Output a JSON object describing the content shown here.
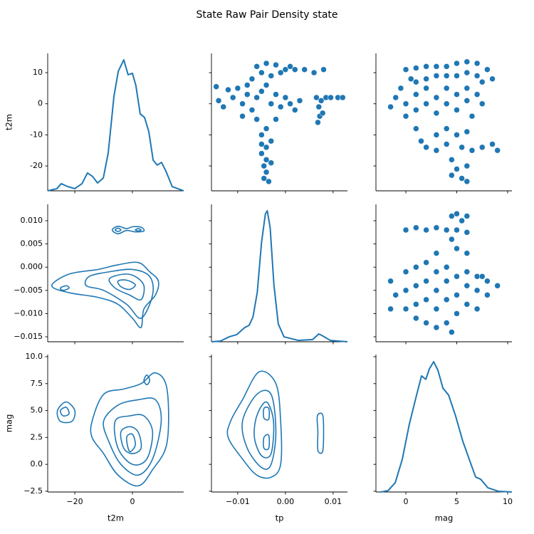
{
  "title": "State Raw Pair Density state",
  "chart_data": [
    {
      "type": "kde",
      "color": "#1f77b4",
      "ylabel": "t2m",
      "ylim": [
        -28,
        16.2
      ],
      "yticks": [
        -20,
        -10,
        0,
        10
      ],
      "y2lim": [
        0,
        1
      ],
      "x": [
        -29.4,
        -26.2,
        -24.7,
        -22.5,
        -20,
        -17.5,
        -15.6,
        -13.8,
        -12.1,
        -10.1,
        -8.4,
        -6.4,
        -4.9,
        -3,
        -1.5,
        0,
        1.2,
        2.7,
        4.2,
        5.7,
        7.2,
        8.6,
        10.1,
        11.6,
        13.8,
        17.8
      ],
      "values": [
        0,
        0.016,
        0.052,
        0.031,
        0.016,
        0.052,
        0.13,
        0.104,
        0.057,
        0.093,
        0.275,
        0.689,
        0.87,
        0.953,
        0.845,
        0.855,
        0.767,
        0.56,
        0.534,
        0.43,
        0.223,
        0.187,
        0.207,
        0.145,
        0.031,
        0
      ]
    },
    {
      "type": "scatter",
      "color": "#1f77b4",
      "x": [
        -0.006,
        -0.004,
        -0.002,
        -0.005,
        -0.003,
        -0.001,
        0,
        -0.007,
        0.001,
        0.002,
        0.004,
        0.006,
        0.008,
        -0.0145,
        -0.014,
        -0.013,
        -0.012,
        -0.011,
        -0.01,
        -0.009,
        -0.008,
        -0.008,
        -0.007,
        -0.006,
        -0.005,
        -0.004,
        -0.003,
        -0.002,
        -0.001,
        0,
        0.001,
        0.002,
        0.003,
        -0.009,
        -0.006,
        -0.002,
        0.0065,
        0.0075,
        0.0085,
        0.007,
        0.0072,
        0.0068,
        0.0078,
        0.0095,
        0.011,
        0.012,
        -0.004,
        -0.005,
        -0.003,
        -0.004,
        -0.005,
        -0.004,
        -0.0045,
        -0.004,
        -0.0045,
        -0.0035,
        -0.003,
        -0.005
      ],
      "values": [
        12,
        13,
        12.5,
        10,
        9,
        10,
        11,
        8,
        12,
        11,
        11,
        10,
        11,
        5.5,
        1,
        -1,
        4.5,
        2,
        5,
        0,
        3,
        6,
        -2,
        2,
        4,
        6,
        0,
        3,
        -1,
        2,
        0,
        -2,
        1,
        -4,
        -5,
        -5,
        2,
        1,
        2,
        -1,
        -4,
        -6,
        -3,
        2,
        2,
        2,
        -8,
        -10,
        -12,
        -14,
        -16,
        -18,
        -20,
        -22,
        -24,
        -25,
        -19,
        -13
      ]
    },
    {
      "type": "scatter",
      "color": "#1f77b4",
      "x": [
        0,
        1,
        2,
        3,
        4,
        5,
        6,
        7,
        8,
        8.5,
        1,
        2,
        3,
        4,
        5,
        6,
        7,
        7.5,
        -1,
        -0.5,
        0,
        0,
        1,
        1,
        2,
        2,
        3,
        3,
        4,
        4,
        5,
        5,
        6,
        6,
        7,
        7.5,
        -1.5,
        0.5,
        6.5,
        1,
        1.5,
        2,
        3,
        3,
        4,
        4,
        5,
        5.5,
        6,
        6.5,
        7.5,
        8.5,
        9,
        4.5,
        5,
        5.5,
        6,
        4.5,
        6
      ],
      "values": [
        11,
        11.5,
        12,
        12,
        12,
        13,
        13.5,
        13,
        11,
        8,
        7,
        8,
        9,
        9,
        9,
        10,
        9,
        7,
        2,
        5,
        0,
        -4,
        3,
        -2,
        0,
        5,
        -3,
        2,
        0,
        5,
        -2,
        3,
        1,
        5,
        3,
        0,
        -1,
        8,
        -4,
        -8,
        -12,
        -14,
        -10,
        -15,
        -8,
        -13,
        -10,
        -14,
        -9,
        -15,
        -14,
        -13,
        -15,
        -18,
        -21,
        -24,
        -25,
        -23,
        -20
      ]
    },
    {
      "type": "contour",
      "color": "#1f77b4",
      "ylim": [
        -0.01607,
        0.01353
      ],
      "yticks": [
        {
          "value": -0.015,
          "label": "−0.015"
        },
        {
          "value": -0.01,
          "label": "−0.010"
        },
        {
          "value": -0.005,
          "label": "−0.005"
        },
        {
          "value": 0,
          "label": "0.000"
        },
        {
          "value": 0.005,
          "label": "0.005"
        },
        {
          "value": 0.01,
          "label": "0.010"
        }
      ],
      "lines": [
        {
          "x": [
            -7,
            -5,
            -2,
            0,
            3,
            4,
            1,
            -2,
            -5
          ],
          "values": [
            0.008,
            0.0088,
            0.0083,
            0.0087,
            0.0086,
            0.0078,
            0.0076,
            0.0079,
            0.0072
          ]
        },
        {
          "x": [
            -6,
            -5,
            -4,
            -5
          ],
          "values": [
            0.008,
            0.0084,
            0.008,
            0.0077
          ]
        },
        {
          "x": [
            1,
            2,
            3,
            2
          ],
          "values": [
            0.008,
            0.0083,
            0.008,
            0.0078
          ]
        },
        {
          "x": [
            -28,
            -22,
            -12,
            -5,
            2,
            6,
            9,
            8,
            4,
            3,
            0,
            -5,
            -12,
            -22
          ],
          "values": [
            -0.004,
            -0.0015,
            -0.0005,
            0.0005,
            0.001,
            -0.001,
            -0.003,
            -0.006,
            -0.009,
            -0.013,
            -0.011,
            -0.008,
            -0.0065,
            -0.0055
          ]
        },
        {
          "x": [
            -15,
            -8,
            0,
            6,
            7,
            3,
            -2,
            -10,
            -16
          ],
          "values": [
            -0.002,
            -0.001,
            -0.0005,
            -0.002,
            -0.006,
            -0.011,
            -0.008,
            -0.005,
            -0.004
          ]
        },
        {
          "x": [
            -8,
            -3,
            1,
            4,
            3,
            -1,
            -6
          ],
          "values": [
            -0.0025,
            -0.0015,
            -0.002,
            -0.004,
            -0.007,
            -0.006,
            -0.0045
          ]
        },
        {
          "x": [
            -5,
            -2,
            1,
            -1,
            -4
          ],
          "values": [
            -0.003,
            -0.0028,
            -0.0038,
            -0.0048,
            -0.0042
          ]
        },
        {
          "x": [
            -25,
            -23,
            -22,
            -24
          ],
          "values": [
            -0.0045,
            -0.004,
            -0.0045,
            -0.005
          ]
        }
      ]
    },
    {
      "type": "kde",
      "color": "#1f77b4",
      "y2lim": [
        0,
        1
      ],
      "x": [
        -0.0155,
        -0.0136,
        -0.0118,
        -0.0102,
        -0.0085,
        -0.0076,
        -0.0068,
        -0.0059,
        -0.005,
        -0.0042,
        -0.0038,
        -0.0032,
        -0.0024,
        -0.0015,
        -0.0003,
        0.0027,
        0.0057,
        0.007,
        0.0079,
        0.0094,
        0.013
      ],
      "values": [
        0,
        0.005,
        0.036,
        0.052,
        0.104,
        0.12,
        0.18,
        0.36,
        0.725,
        0.93,
        0.953,
        0.83,
        0.41,
        0.13,
        0.036,
        0.01,
        0.016,
        0.057,
        0.041,
        0.01,
        0
      ]
    },
    {
      "type": "scatter",
      "color": "#1f77b4",
      "x": [
        0,
        1,
        2,
        3,
        4,
        5,
        6,
        4.5,
        5,
        5.5,
        6,
        4.5,
        5,
        3,
        6,
        -1.5,
        -1,
        -1.5,
        0,
        0,
        0,
        1,
        1,
        1,
        1,
        2,
        2,
        2,
        2,
        3,
        3,
        3,
        3,
        4,
        4,
        4,
        4,
        4.5,
        5,
        5,
        5,
        6,
        6,
        6,
        7,
        7,
        7,
        8,
        8,
        9,
        7.5
      ],
      "values": [
        0.008,
        0.0085,
        0.008,
        0.0085,
        0.008,
        0.008,
        0.0075,
        0.011,
        0.0115,
        0.01,
        0.011,
        0.006,
        0.004,
        0.003,
        0.003,
        -0.003,
        -0.006,
        -0.009,
        -0.001,
        -0.005,
        -0.009,
        0,
        -0.004,
        -0.008,
        -0.011,
        0.001,
        -0.003,
        -0.007,
        -0.012,
        -0.001,
        -0.005,
        -0.009,
        -0.013,
        0,
        -0.003,
        -0.007,
        -0.012,
        -0.014,
        -0.002,
        -0.006,
        -0.01,
        -0.001,
        -0.004,
        -0.008,
        -0.002,
        -0.005,
        -0.009,
        -0.003,
        -0.006,
        -0.004,
        -0.002
      ]
    },
    {
      "type": "contour",
      "color": "#1f77b4",
      "xlabel": "t2m",
      "ylabel": "mag",
      "xlim": [
        -29.4,
        17.8
      ],
      "xticks": [
        {
          "value": -20,
          "label": "−20"
        },
        0
      ],
      "ylim": [
        -2.57,
        10.2
      ],
      "yticks": [
        {
          "value": -2.5,
          "label": "−2.5"
        },
        {
          "value": 0,
          "label": "0.0"
        },
        {
          "value": 2.5,
          "label": "2.5"
        },
        {
          "value": 5,
          "label": "5.0"
        },
        {
          "value": 7.5,
          "label": "7.5"
        },
        {
          "value": 10,
          "label": "10.0"
        }
      ],
      "lines": [
        {
          "x": [
            -26,
            -23,
            -20,
            -21,
            -25
          ],
          "values": [
            5,
            5.8,
            5,
            4,
            4
          ]
        },
        {
          "x": [
            -25,
            -23,
            -22,
            -24
          ],
          "values": [
            5,
            5.3,
            4.7,
            4.5
          ]
        },
        {
          "x": [
            -14,
            -10,
            -3,
            3,
            8,
            12,
            12,
            7,
            2,
            -5,
            -10,
            -14
          ],
          "values": [
            4,
            6.5,
            7,
            7.5,
            8.5,
            7,
            2,
            -0.5,
            -2,
            -1,
            1,
            2.5
          ]
        },
        {
          "x": [
            -10,
            -5,
            2,
            8,
            10,
            7,
            2,
            -4,
            -8
          ],
          "values": [
            4,
            5.5,
            6,
            6,
            4,
            0.5,
            -1,
            0,
            2
          ]
        },
        {
          "x": [
            -6,
            -1,
            4,
            7,
            5,
            0,
            -5
          ],
          "values": [
            4,
            4.5,
            4.5,
            3,
            0.5,
            0,
            1.5
          ]
        },
        {
          "x": [
            -4,
            -1,
            2,
            3,
            0,
            -3
          ],
          "values": [
            3,
            3.5,
            3,
            1.5,
            1,
            1.5
          ]
        },
        {
          "x": [
            -2,
            0,
            1,
            -1
          ],
          "values": [
            2.5,
            2.8,
            1.8,
            1.2
          ]
        },
        {
          "x": [
            4,
            5,
            6,
            5
          ],
          "values": [
            7.8,
            8.3,
            7.8,
            7.4
          ]
        }
      ]
    },
    {
      "type": "contour",
      "color": "#1f77b4",
      "xlabel": "tp",
      "xlim": [
        -0.0155,
        0.013
      ],
      "xticks": [
        {
          "value": -0.01,
          "label": "−0.01"
        },
        {
          "value": 0,
          "label": "0.00"
        },
        0.01
      ],
      "lines": [
        {
          "x": [
            -0.0115,
            -0.009,
            -0.0055,
            -0.002,
            -0.001,
            -0.001,
            -0.003,
            -0.006,
            -0.009,
            -0.012
          ],
          "values": [
            4,
            6,
            8.6,
            7.5,
            4,
            0,
            -1.2,
            -1,
            0.5,
            2.5
          ]
        },
        {
          "x": [
            -0.009,
            -0.006,
            -0.003,
            -0.002,
            -0.003,
            -0.005,
            -0.008
          ],
          "values": [
            4,
            6.5,
            6.5,
            3,
            0,
            -0.3,
            1.5
          ]
        },
        {
          "x": [
            -0.006,
            -0.004,
            -0.0025,
            -0.003,
            -0.005,
            -0.0065
          ],
          "values": [
            4.5,
            5.8,
            4,
            1,
            0.8,
            2.5
          ]
        },
        {
          "x": [
            -0.0045,
            -0.0035,
            -0.0035,
            -0.0045
          ],
          "values": [
            5.2,
            5.2,
            4.2,
            4.3
          ]
        },
        {
          "x": [
            -0.0045,
            -0.0035,
            -0.0035,
            -0.0045
          ],
          "values": [
            2.5,
            2.7,
            1.5,
            1.5
          ]
        },
        {
          "x": [
            0.0067,
            0.0078,
            0.008,
            0.0078,
            0.0068,
            0.0068
          ],
          "values": [
            4.5,
            4.6,
            3,
            1.2,
            1.3,
            3
          ]
        }
      ]
    },
    {
      "type": "kde",
      "color": "#1f77b4",
      "xlabel": "mag",
      "y2lim": [
        0,
        1
      ],
      "xlim": [
        -2.94,
        10.42
      ],
      "xticks": [
        0,
        5,
        10
      ],
      "x": [
        -2.45,
        -1.75,
        -1.05,
        -0.35,
        0.35,
        1.05,
        1.54,
        1.96,
        2.31,
        2.73,
        3.15,
        3.64,
        4.2,
        4.9,
        5.6,
        6.3,
        6.85,
        7.35,
        8.05,
        9.1,
        10.4
      ],
      "values": [
        0,
        0.01,
        0.067,
        0.238,
        0.497,
        0.705,
        0.845,
        0.82,
        0.896,
        0.948,
        0.886,
        0.756,
        0.705,
        0.55,
        0.368,
        0.223,
        0.109,
        0.093,
        0.031,
        0.005,
        0
      ]
    }
  ]
}
